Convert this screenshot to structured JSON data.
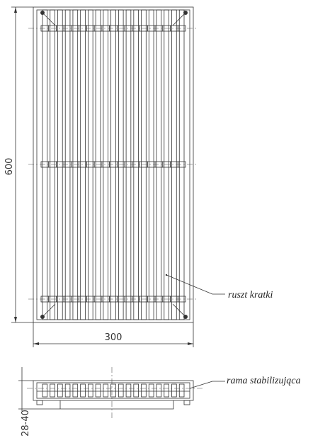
{
  "dimensions": {
    "height": "600",
    "width": "300",
    "profile_height": "28-40"
  },
  "labels": {
    "grate": "ruszt kratki",
    "frame": "rama stabilizująca"
  }
}
